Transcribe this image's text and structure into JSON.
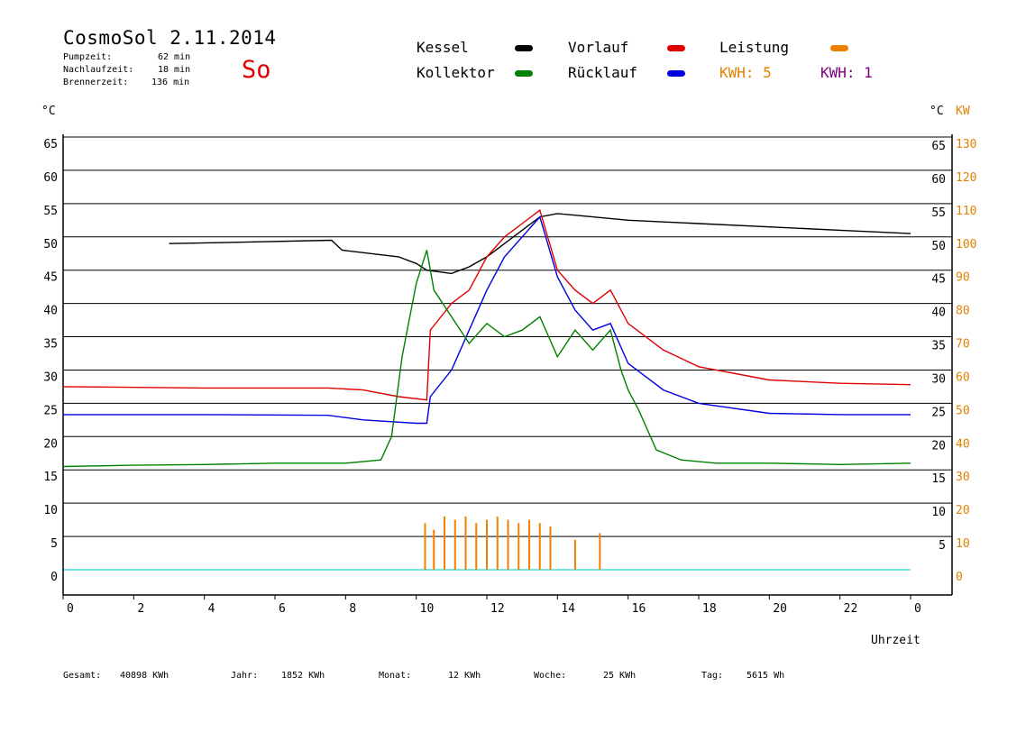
{
  "header": {
    "title": "CosmoSol 2.11.2014",
    "stats": [
      {
        "label": "Pumpzeit:",
        "value": "62 min"
      },
      {
        "label": "Nachlaufzeit:",
        "value": "18 min"
      },
      {
        "label": "Brennerzeit:",
        "value": "136 min"
      }
    ],
    "day": "So"
  },
  "legend": {
    "items": [
      {
        "label": "Kessel",
        "color": "#000000"
      },
      {
        "label": "Vorlauf",
        "color": "#e00000"
      },
      {
        "label": "Leistung",
        "color": "#f08000"
      },
      {
        "label": "Kollektor",
        "color": "#008000"
      },
      {
        "label": "Rücklauf",
        "color": "#0000e0"
      }
    ],
    "kwh": [
      {
        "text": "KWH: 5",
        "color": "#e08000"
      },
      {
        "text": "KWH: 1",
        "color": "#800080"
      }
    ]
  },
  "footer": [
    {
      "label": "Gesamt:",
      "value": "40898 KWh"
    },
    {
      "label": "Jahr:",
      "value": "1852 KWh"
    },
    {
      "label": "Monat:",
      "value": "12 KWh"
    },
    {
      "label": "Woche:",
      "value": "25 KWh"
    },
    {
      "label": "Tag:",
      "value": "5615 Wh"
    }
  ],
  "chart_data": {
    "type": "line",
    "xlabel": "Uhrzeit",
    "ylabel_left": "°C",
    "ylabel_right": "°C",
    "ylabel_power": "KW",
    "x_ticks": [
      "0",
      "2",
      "4",
      "6",
      "8",
      "10",
      "12",
      "14",
      "16",
      "18",
      "20",
      "22",
      "0"
    ],
    "xlim": [
      0,
      24
    ],
    "y_ticks": [
      0,
      5,
      10,
      15,
      20,
      25,
      30,
      35,
      40,
      45,
      50,
      55,
      60,
      65
    ],
    "power_ticks": [
      "0",
      "10",
      "20",
      "30",
      "40",
      "50",
      "60",
      "70",
      "80",
      "90",
      "100",
      "110",
      "120",
      "130"
    ],
    "ylim": [
      0,
      65
    ],
    "grid": true,
    "series": [
      {
        "name": "Kessel",
        "color": "#000000",
        "x": [
          3,
          5,
          7.6,
          7.9,
          9.5,
          10,
          10.3,
          11,
          11.5,
          12,
          12.5,
          13,
          13.5,
          14,
          16,
          18,
          20,
          22,
          24
        ],
        "y": [
          49,
          49.2,
          49.5,
          48,
          47,
          46,
          45,
          44.5,
          45.5,
          47,
          49,
          51,
          53,
          53.5,
          52.5,
          52,
          51.5,
          51,
          50.5
        ]
      },
      {
        "name": "Vorlauf",
        "color": "#e00000",
        "x": [
          0,
          4,
          7.5,
          8.5,
          9.5,
          10.3,
          10.4,
          11,
          11.5,
          12,
          12.5,
          13,
          13.5,
          14,
          14.5,
          15,
          15.5,
          16,
          17,
          18,
          20,
          22,
          24
        ],
        "y": [
          27.5,
          27.3,
          27.3,
          27,
          26,
          25.5,
          36,
          40,
          42,
          47,
          50,
          52,
          54,
          45,
          42,
          40,
          42,
          37,
          33,
          30.5,
          28.5,
          28,
          27.8
        ]
      },
      {
        "name": "Rücklauf",
        "color": "#0000e0",
        "x": [
          0,
          4,
          7.5,
          8.5,
          10,
          10.3,
          10.4,
          11,
          11.5,
          12,
          12.5,
          13,
          13.5,
          14,
          14.5,
          15,
          15.5,
          16,
          17,
          18,
          20,
          22,
          24
        ],
        "y": [
          23.3,
          23.3,
          23.2,
          22.5,
          22,
          22,
          26,
          30,
          36,
          42,
          47,
          50,
          53,
          44,
          39,
          36,
          37,
          31,
          27,
          25,
          23.5,
          23.3,
          23.3
        ]
      },
      {
        "name": "Kollektor",
        "color": "#008000",
        "x": [
          0,
          2,
          4,
          6,
          8,
          9,
          9.3,
          9.6,
          10,
          10.3,
          10.5,
          11,
          11.5,
          12,
          12.5,
          13,
          13.5,
          14,
          14.5,
          15,
          15.5,
          15.8,
          16,
          16.3,
          16.8,
          17.5,
          18.5,
          20,
          22,
          24
        ],
        "y": [
          15.5,
          15.7,
          15.8,
          16,
          16,
          16.5,
          20,
          32,
          43,
          48,
          42,
          38,
          34,
          37,
          35,
          36,
          38,
          32,
          36,
          33,
          36,
          30,
          27,
          24,
          18,
          16.5,
          16,
          16,
          15.8,
          16
        ]
      }
    ],
    "leistung_bars": {
      "color": "#f08000",
      "x": [
        10.25,
        10.5,
        10.8,
        11.1,
        11.4,
        11.7,
        12.0,
        12.3,
        12.6,
        12.9,
        13.2,
        13.5,
        13.8,
        14.5,
        15.2
      ],
      "y": [
        7,
        6,
        8,
        7.5,
        8,
        7,
        7.5,
        8,
        7.5,
        7,
        7.5,
        7,
        6.5,
        4.5,
        5.5
      ]
    }
  }
}
